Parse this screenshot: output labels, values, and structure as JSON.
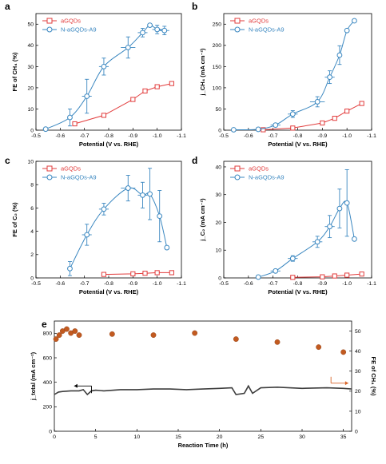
{
  "figure": {
    "colors": {
      "agqds": "#e23d3d",
      "n_agqds": "#3a87c0",
      "orange": "#d8652a",
      "stability_line": "#3d3d3d",
      "stability_dot": "#c25a20"
    }
  },
  "chart_data": [
    {
      "id": "a",
      "panel": "a",
      "type": "line",
      "xlabel": "Potential (V vs. RHE)",
      "ylabel": "FE of CH₄ (%)",
      "xlim": [
        -0.5,
        -1.1
      ],
      "ylim": [
        0,
        55
      ],
      "xticks": [
        "-0.5",
        "-0.6",
        "-0.7",
        "-0.8",
        "-0.9",
        "-1.0",
        "-1.1"
      ],
      "yticks": [
        "0",
        "10",
        "20",
        "30",
        "40",
        "50"
      ],
      "legend": [
        "aGQDs",
        "N-aGQDs-A9"
      ],
      "series": [
        {
          "name": "aGQDs",
          "color": "#e23d3d",
          "marker": "square",
          "x": [
            -0.66,
            -0.78,
            -0.9,
            -0.95,
            -1.0,
            -1.06
          ],
          "y": [
            3,
            7,
            14.5,
            18.5,
            20.5,
            22
          ]
        },
        {
          "name": "N-aGQDs-A9",
          "color": "#3a87c0",
          "marker": "circle",
          "x": [
            -0.54,
            -0.64,
            -0.71,
            -0.78,
            -0.88,
            -0.94,
            -0.97,
            -1.0,
            -1.03
          ],
          "y": [
            0.5,
            6,
            16,
            30,
            39,
            46,
            49.5,
            47.5,
            47
          ],
          "yerr": [
            0,
            4,
            8,
            4,
            5,
            2,
            0,
            2,
            2
          ],
          "xerr": [
            0,
            0,
            0.02,
            0.02,
            0.03,
            0.02,
            0,
            0.02,
            0.02
          ]
        }
      ]
    },
    {
      "id": "b",
      "panel": "b",
      "type": "line",
      "xlabel": "Potential (V vs. RHE)",
      "ylabel": "j_CH₄ (mA cm⁻²)",
      "xlim": [
        -0.5,
        -1.1
      ],
      "ylim": [
        0,
        275
      ],
      "xticks": [
        "-0.5",
        "-0.6",
        "-0.7",
        "-0.8",
        "-0.9",
        "-1.0",
        "-1.1"
      ],
      "yticks": [
        "0",
        "50",
        "100",
        "150",
        "200",
        "250"
      ],
      "legend": [
        "aGQDs",
        "N-aGQDs-A9"
      ],
      "series": [
        {
          "name": "aGQDs",
          "color": "#e23d3d",
          "marker": "square",
          "x": [
            -0.66,
            -0.78,
            -0.9,
            -0.95,
            -1.0,
            -1.06
          ],
          "y": [
            1,
            5,
            17,
            28,
            45,
            63
          ]
        },
        {
          "name": "N-aGQDs-A9",
          "color": "#3a87c0",
          "marker": "circle",
          "x": [
            -0.54,
            -0.64,
            -0.71,
            -0.78,
            -0.88,
            -0.93,
            -0.97,
            -1.0,
            -1.03
          ],
          "y": [
            1,
            2,
            12,
            38,
            67,
            125,
            177,
            235,
            258
          ],
          "yerr": [
            0,
            0,
            4,
            8,
            12,
            15,
            22,
            0,
            0
          ],
          "xerr": [
            0,
            0,
            0.02,
            0.02,
            0.03,
            0.02,
            0,
            0,
            0
          ]
        }
      ]
    },
    {
      "id": "c",
      "panel": "c",
      "type": "line",
      "xlabel": "Potential (V vs. RHE)",
      "ylabel": "FE of C₂ (%)",
      "xlim": [
        -0.5,
        -1.1
      ],
      "ylim": [
        0,
        10
      ],
      "xticks": [
        "-0.5",
        "-0.6",
        "-0.7",
        "-0.8",
        "-0.9",
        "-1.0",
        "-1.1"
      ],
      "yticks": [
        "0",
        "2",
        "4",
        "6",
        "8",
        "10"
      ],
      "legend": [
        "aGQDs",
        "N-aGQDs-A9"
      ],
      "series": [
        {
          "name": "aGQDs",
          "color": "#e23d3d",
          "marker": "square",
          "x": [
            -0.78,
            -0.9,
            -0.95,
            -1.0,
            -1.06
          ],
          "y": [
            0.3,
            0.35,
            0.4,
            0.45,
            0.45
          ]
        },
        {
          "name": "N-aGQDs-A9",
          "color": "#3a87c0",
          "marker": "circle",
          "x": [
            -0.64,
            -0.71,
            -0.78,
            -0.88,
            -0.94,
            -0.97,
            -1.01,
            -1.04
          ],
          "y": [
            0.8,
            3.7,
            5.9,
            7.7,
            7.1,
            7.2,
            5.3,
            2.6
          ],
          "yerr": [
            0.6,
            0.9,
            0.5,
            1.1,
            1.1,
            2.2,
            2.2,
            0
          ],
          "xerr": [
            0,
            0.02,
            0.02,
            0.03,
            0.02,
            0,
            0,
            0
          ]
        }
      ]
    },
    {
      "id": "d",
      "panel": "d",
      "type": "line",
      "xlabel": "Potential (V vs. RHE)",
      "ylabel": "j_C₂ (mA cm⁻²)",
      "xlim": [
        -0.5,
        -1.1
      ],
      "ylim": [
        0,
        42
      ],
      "xticks": [
        "-0.5",
        "-0.6",
        "-0.7",
        "-0.8",
        "-0.9",
        "-1.0",
        "-1.1"
      ],
      "yticks": [
        "0",
        "10",
        "20",
        "30",
        "40"
      ],
      "legend": [
        "aGQDs",
        "N-aGQDs-A9"
      ],
      "series": [
        {
          "name": "aGQDs",
          "color": "#e23d3d",
          "marker": "square",
          "x": [
            -0.78,
            -0.9,
            -0.95,
            -1.0,
            -1.06
          ],
          "y": [
            0.2,
            0.4,
            0.7,
            1.0,
            1.4
          ]
        },
        {
          "name": "N-aGQDs-A9",
          "color": "#3a87c0",
          "marker": "circle",
          "x": [
            -0.64,
            -0.71,
            -0.78,
            -0.88,
            -0.93,
            -0.97,
            -1.0,
            -1.03
          ],
          "y": [
            0.3,
            2.5,
            7,
            13,
            18.5,
            25,
            27,
            14
          ],
          "yerr": [
            0,
            0,
            1,
            2,
            4,
            7,
            12,
            0
          ],
          "xerr": [
            0,
            0.02,
            0.02,
            0.02,
            0.02,
            0,
            0,
            0
          ]
        }
      ]
    },
    {
      "id": "e",
      "panel": "e",
      "type": "line",
      "xlabel": "Reaction Time (h)",
      "ylabel": "j_total (mA cm⁻²)",
      "ylabel_right": "FE of CH₄ (%)",
      "xlim": [
        0,
        36
      ],
      "ylim": [
        0,
        900
      ],
      "ylim_right": [
        0,
        55
      ],
      "xticks": [
        "0",
        "5",
        "10",
        "15",
        "20",
        "25",
        "30",
        "35"
      ],
      "yticks": [
        "0",
        "200",
        "400",
        "600",
        "800"
      ],
      "yticks_right": [
        "0",
        "10",
        "20",
        "30",
        "40",
        "50"
      ],
      "series": [
        {
          "name": "j_total",
          "color": "#3d3d3d",
          "axis": "left",
          "x": [
            0,
            0.5,
            1,
            2,
            3,
            3.5,
            4,
            4.5,
            5,
            6,
            8,
            10,
            12,
            14,
            16,
            18,
            20,
            21.5,
            22,
            23,
            23.5,
            24,
            25,
            27,
            30,
            33,
            35,
            36
          ],
          "y": [
            300,
            320,
            325,
            330,
            330,
            340,
            300,
            330,
            335,
            330,
            340,
            340,
            345,
            345,
            340,
            345,
            350,
            355,
            300,
            310,
            370,
            310,
            355,
            360,
            350,
            355,
            350,
            345
          ]
        },
        {
          "name": "FE of CH₄",
          "color": "#c25a20",
          "axis": "right",
          "marker": "circle",
          "x": [
            0.2,
            0.6,
            1,
            1.5,
            2,
            2.5,
            3,
            7,
            12,
            17,
            22,
            27,
            32,
            35
          ],
          "y": [
            46,
            48,
            50,
            51,
            49,
            50,
            48,
            48.5,
            48,
            49,
            46,
            44.5,
            42,
            39.5
          ]
        }
      ]
    }
  ]
}
